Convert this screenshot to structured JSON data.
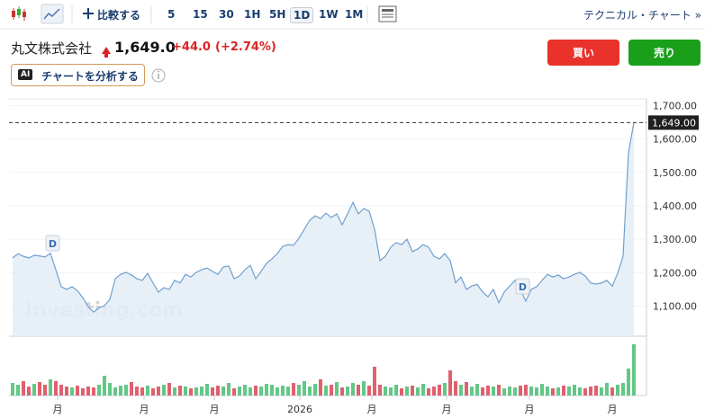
{
  "toolbar": {
    "compare": "比較する",
    "intervals": [
      "5",
      "15",
      "30",
      "1H",
      "5H",
      "1D",
      "1W",
      "1M"
    ],
    "selected": "1D",
    "technical": "テクニカル・チャート »"
  },
  "header": {
    "name": "丸文株式会社",
    "price": "1,649.0",
    "change": "+44.0",
    "change_pct": "(+2.74%)"
  },
  "buttons": {
    "buy": "買い",
    "sell": "売り"
  },
  "ai_button": {
    "badge": "AI",
    "label": "チャートを分析する"
  },
  "chart_data": {
    "type": "area",
    "color": "#6f9fd0",
    "fill": "#e4edf6",
    "watermark": "Investing.com",
    "ylim": [
      1010,
      1720
    ],
    "yticks": [
      {
        "value": 1100,
        "label": "1,100.00"
      },
      {
        "value": 1200,
        "label": "1,200.00"
      },
      {
        "value": 1300,
        "label": "1,300.00"
      },
      {
        "value": 1400,
        "label": "1,400.00"
      },
      {
        "value": 1500,
        "label": "1,500.00"
      },
      {
        "value": 1600,
        "label": "1,600.00"
      },
      {
        "value": 1700,
        "label": "1,700.00"
      }
    ],
    "last_price": {
      "value": 1649,
      "label": "1,649.00"
    },
    "xticks": [
      "月",
      "月",
      "月",
      "2026",
      "月",
      "月",
      "月",
      "月"
    ],
    "markers": [
      "D",
      "D"
    ],
    "values": [
      1244,
      1257,
      1249,
      1244,
      1252,
      1250,
      1247,
      1258,
      1209,
      1158,
      1150,
      1158,
      1146,
      1125,
      1098,
      1082,
      1095,
      1101,
      1120,
      1182,
      1195,
      1201,
      1193,
      1182,
      1177,
      1198,
      1169,
      1142,
      1155,
      1150,
      1177,
      1169,
      1195,
      1187,
      1201,
      1209,
      1214,
      1204,
      1195,
      1217,
      1220,
      1182,
      1190,
      1209,
      1222,
      1182,
      1204,
      1228,
      1241,
      1257,
      1279,
      1284,
      1282,
      1303,
      1330,
      1357,
      1370,
      1362,
      1378,
      1365,
      1376,
      1343,
      1376,
      1410,
      1376,
      1392,
      1384,
      1330,
      1236,
      1249,
      1276,
      1290,
      1284,
      1300,
      1263,
      1271,
      1284,
      1276,
      1249,
      1241,
      1257,
      1236,
      1170,
      1187,
      1150,
      1160,
      1165,
      1142,
      1128,
      1150,
      1110,
      1142,
      1160,
      1177,
      1150,
      1115,
      1150,
      1158,
      1177,
      1195,
      1187,
      1193,
      1182,
      1187,
      1195,
      1201,
      1190,
      1169,
      1166,
      1169,
      1177,
      1160,
      1198,
      1249,
      1560,
      1649
    ],
    "volume": {
      "ylim": [
        0,
        60
      ],
      "up_color": "#63c785",
      "down_color": "#e0606e",
      "values": [
        14,
        12,
        16,
        10,
        13,
        15,
        12,
        18,
        16,
        12,
        10,
        9,
        11,
        8,
        10,
        9,
        12,
        22,
        14,
        9,
        11,
        12,
        15,
        10,
        9,
        11,
        8,
        10,
        12,
        14,
        9,
        11,
        10,
        8,
        9,
        10,
        13,
        9,
        11,
        10,
        14,
        8,
        10,
        12,
        9,
        11,
        10,
        13,
        12,
        9,
        11,
        10,
        14,
        12,
        16,
        10,
        13,
        18,
        11,
        12,
        15,
        9,
        10,
        14,
        12,
        16,
        11,
        32,
        12,
        10,
        9,
        12,
        8,
        10,
        11,
        9,
        13,
        8,
        10,
        12,
        14,
        28,
        16,
        12,
        15,
        10,
        13,
        9,
        11,
        10,
        12,
        8,
        10,
        9,
        11,
        12,
        10,
        9,
        13,
        10,
        8,
        9,
        11,
        10,
        12,
        9,
        8,
        10,
        11,
        9,
        14,
        9,
        12,
        14,
        30,
        57
      ]
    }
  }
}
